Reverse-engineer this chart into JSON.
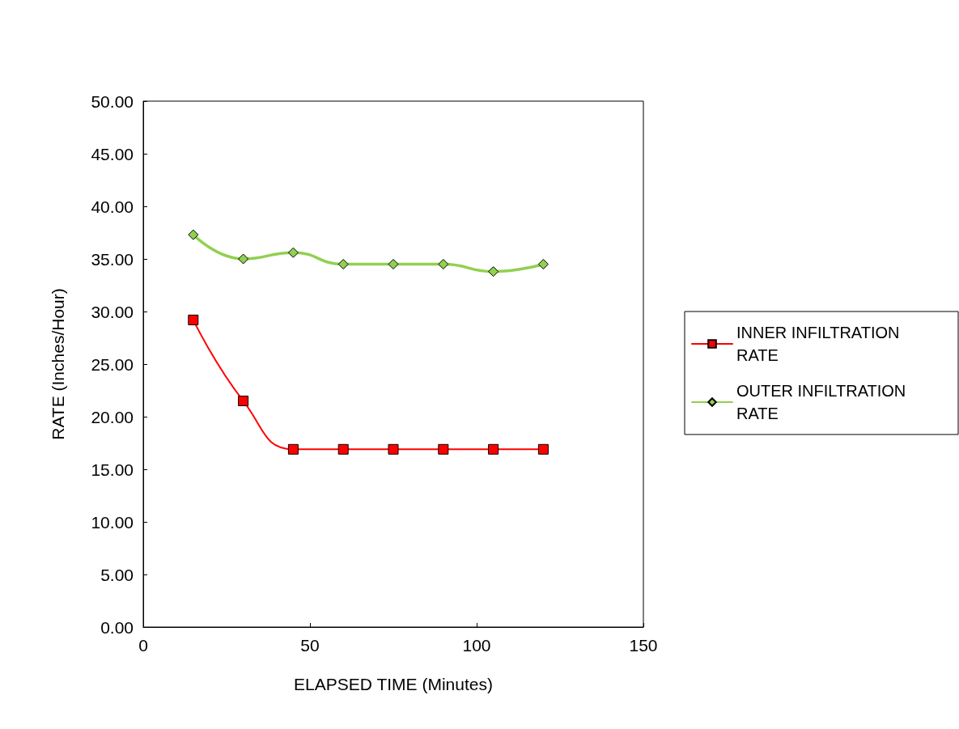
{
  "chart_data": {
    "type": "line",
    "xlabel": "ELAPSED TIME (Minutes)",
    "ylabel": "RATE (Inches/Hour)",
    "x": [
      15,
      30,
      45,
      60,
      75,
      90,
      105,
      120
    ],
    "series": [
      {
        "name": "INNER INFILTRATION RATE",
        "color": "#ff0000",
        "marker": "square",
        "values": [
          29.2,
          21.5,
          16.9,
          16.9,
          16.9,
          16.9,
          16.9,
          16.9
        ]
      },
      {
        "name": "OUTER INFILTRATION RATE",
        "color": "#92d050",
        "marker": "diamond",
        "values": [
          37.3,
          35.0,
          35.6,
          34.5,
          34.5,
          34.5,
          33.8,
          34.5
        ]
      }
    ],
    "xlim": [
      0,
      150
    ],
    "xticks": [
      0,
      50,
      100,
      150
    ],
    "ylim": [
      0,
      50
    ],
    "yticks": [
      {
        "value": 0,
        "label": "0.00"
      },
      {
        "value": 5,
        "label": "5.00"
      },
      {
        "value": 10,
        "label": "10.00"
      },
      {
        "value": 15,
        "label": "15.00"
      },
      {
        "value": 20,
        "label": "20.00"
      },
      {
        "value": 25,
        "label": "25.00"
      },
      {
        "value": 30,
        "label": "30.00"
      },
      {
        "value": 35,
        "label": "35.00"
      },
      {
        "value": 40,
        "label": "40.00"
      },
      {
        "value": 45,
        "label": "45.00"
      },
      {
        "value": 50,
        "label": "50.00"
      }
    ],
    "grid": false,
    "legend": "right"
  }
}
